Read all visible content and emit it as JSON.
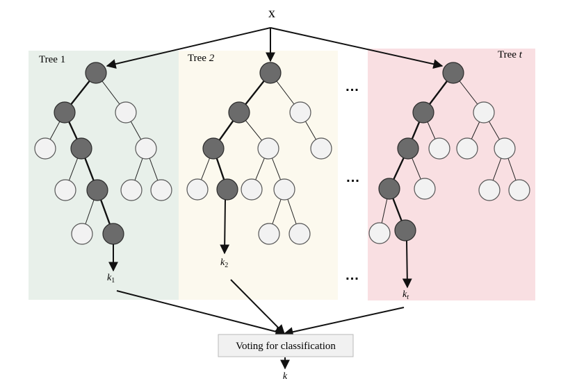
{
  "input_label": "x",
  "trees": [
    {
      "name": "Tree",
      "index": "1",
      "index_italic": false,
      "output_base": "k",
      "output_sub": "1",
      "bg": "#e8f0ea"
    },
    {
      "name": "Tree",
      "index": "2",
      "index_italic": true,
      "output_base": "k",
      "output_sub": "2",
      "bg": "#fcf9ee"
    },
    {
      "name": "Tree",
      "index": "t",
      "index_italic": true,
      "output_base": "k",
      "output_sub": "t",
      "bg": "#f9dfe2"
    }
  ],
  "ellipsis": "...",
  "voting_label": "Voting for classification",
  "final_output": "k",
  "colors": {
    "inner_node": "#6b6b6b",
    "leaf_node": "#f2f2f2"
  }
}
